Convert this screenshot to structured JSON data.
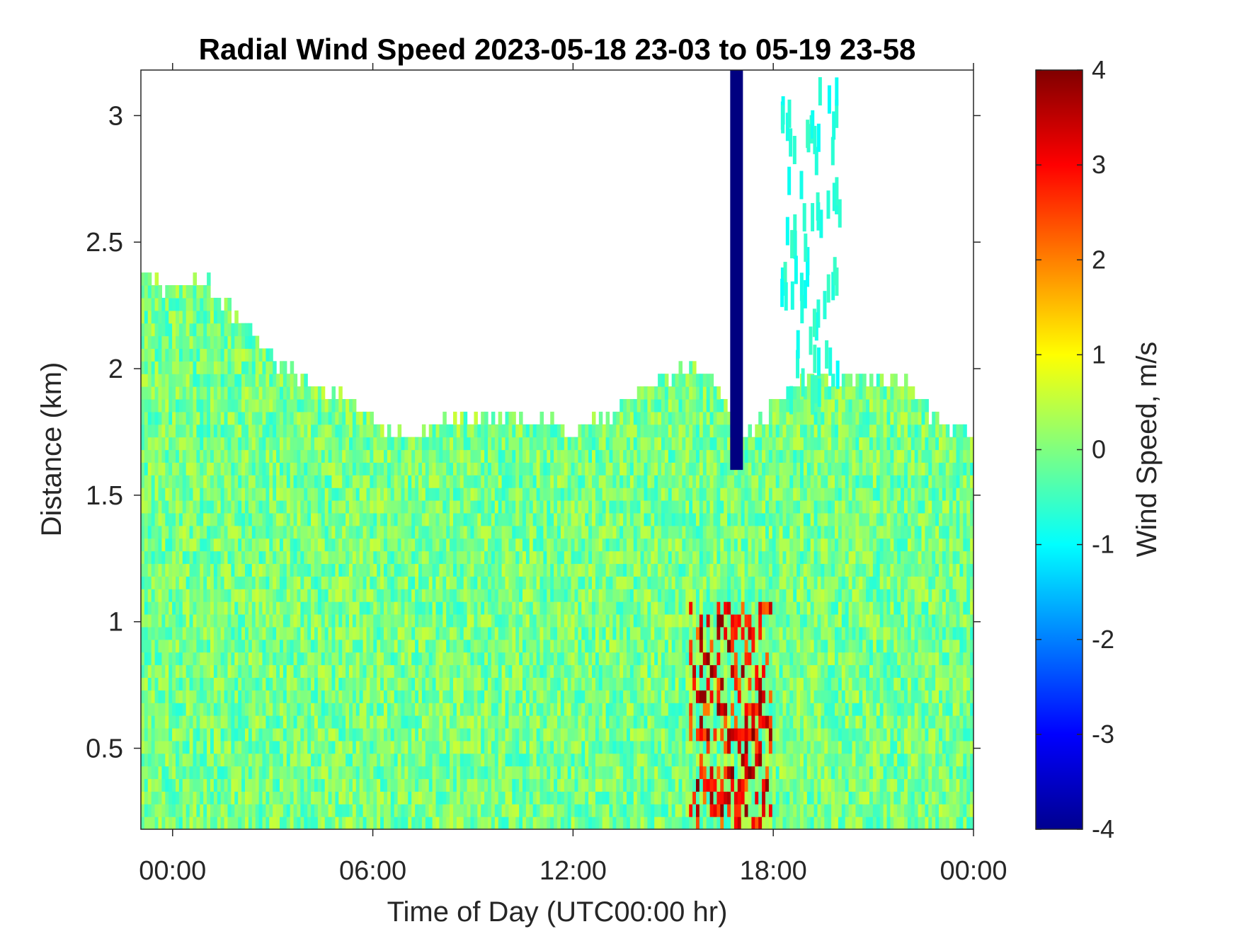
{
  "chart_data": {
    "type": "heatmap",
    "title": "Radial Wind Speed 2023-05-18 23-03 to 05-19 23-58",
    "xlabel": "Time of Day (UTC00:00 hr)",
    "ylabel": "Distance (km)",
    "xlim": [
      -0.95,
      24.0
    ],
    "ylim": [
      0.18,
      3.18
    ],
    "x_ticks": [
      {
        "value": 0,
        "label": "00:00"
      },
      {
        "value": 6,
        "label": "06:00"
      },
      {
        "value": 12,
        "label": "12:00"
      },
      {
        "value": 18,
        "label": "18:00"
      },
      {
        "value": 24,
        "label": "00:00"
      }
    ],
    "y_ticks": [
      {
        "value": 0.5,
        "label": "0.5"
      },
      {
        "value": 1,
        "label": "1"
      },
      {
        "value": 1.5,
        "label": "1.5"
      },
      {
        "value": 2,
        "label": "2"
      },
      {
        "value": 2.5,
        "label": "2.5"
      },
      {
        "value": 3,
        "label": "3"
      }
    ],
    "colorbar": {
      "label": "Wind Speed, m/s",
      "colormap": "jet",
      "clim": [
        -4,
        4
      ],
      "ticks": [
        {
          "value": 4,
          "label": "4"
        },
        {
          "value": 3,
          "label": "3"
        },
        {
          "value": 2,
          "label": "2"
        },
        {
          "value": 1,
          "label": "1"
        },
        {
          "value": 0,
          "label": "0"
        },
        {
          "value": -1,
          "label": "-1"
        },
        {
          "value": -2,
          "label": "-2"
        },
        {
          "value": -3,
          "label": "-3"
        },
        {
          "value": -4,
          "label": "-4"
        }
      ]
    },
    "data_top_km": {
      "time_hr": [
        -0.95,
        0,
        1,
        2,
        3,
        4,
        5,
        6,
        6.5,
        7,
        8,
        9,
        10,
        11,
        12,
        13,
        14,
        15,
        16,
        17,
        18,
        19,
        20,
        21,
        22,
        23,
        24
      ],
      "distance_km": [
        2.35,
        2.32,
        2.35,
        2.2,
        2.05,
        1.95,
        1.9,
        1.82,
        1.75,
        1.72,
        1.78,
        1.8,
        1.8,
        1.8,
        1.75,
        1.8,
        1.9,
        1.98,
        2.0,
        1.72,
        1.85,
        1.97,
        1.97,
        1.95,
        1.95,
        1.78,
        1.75
      ]
    },
    "features": [
      {
        "time_hr": 16.9,
        "distance_km_from": 1.6,
        "distance_km_to": 3.18,
        "value_ms": -4
      },
      {
        "time_hr_from": 15.5,
        "time_hr_to": 18.0,
        "distance_km_from": 0.18,
        "distance_km_to": 1.1,
        "value_ms": 3.5
      },
      {
        "time_hr_from": 18.2,
        "time_hr_to": 20.0,
        "distance_km_from": 1.9,
        "distance_km_to": 3.18,
        "value_ms": -1
      }
    ]
  }
}
